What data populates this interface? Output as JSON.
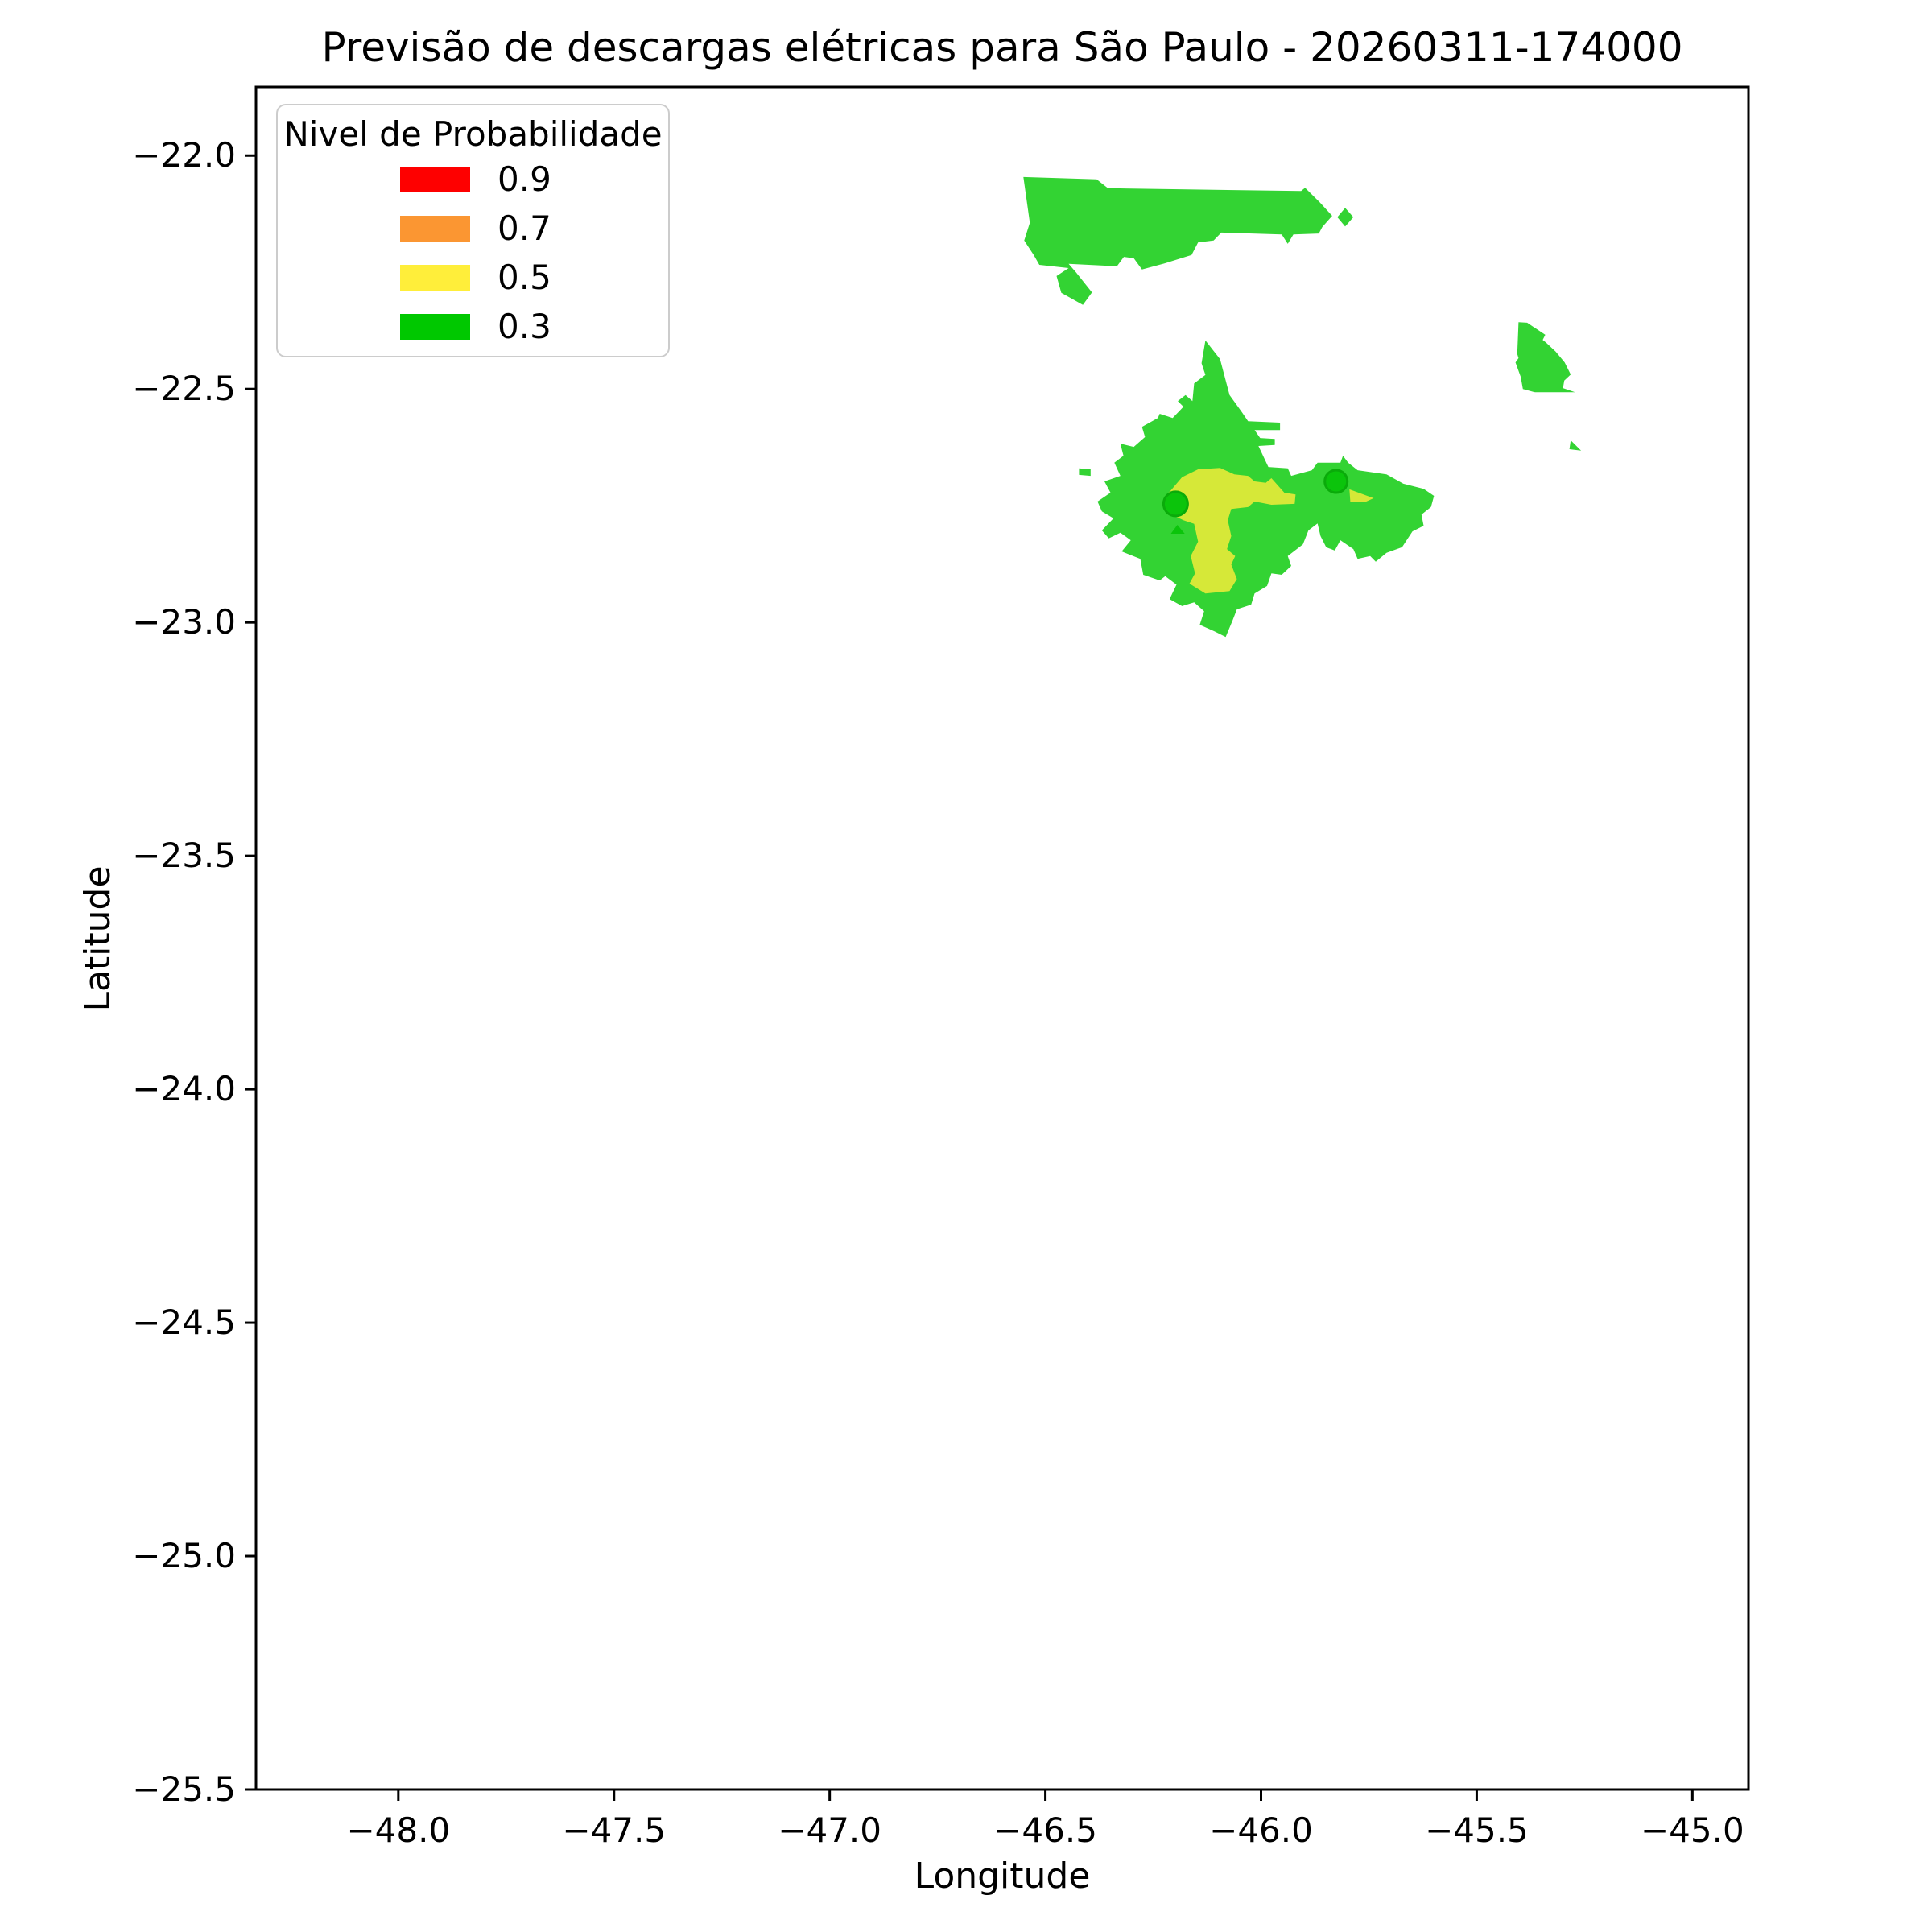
{
  "chart_data": {
    "type": "filled-contour-map",
    "title": "Previsão de descargas elétricas para São Paulo - 20260311-174000",
    "timestamp": "20260311-174000",
    "xlabel": "Longitude",
    "ylabel": "Latitude",
    "xlim": [
      -48.33,
      -44.87
    ],
    "ylim": [
      -25.5,
      -21.853
    ],
    "grid": false,
    "x_ticks": [
      -48.0,
      -47.5,
      -47.0,
      -46.5,
      -46.0,
      -45.5,
      -45.0
    ],
    "x_tick_labels": [
      "−48.0",
      "−47.5",
      "−47.0",
      "−46.5",
      "−46.0",
      "−45.5",
      "−45.0"
    ],
    "y_ticks": [
      -22.0,
      -22.5,
      -23.0,
      -23.5,
      -24.0,
      -24.5,
      -25.0,
      -25.5
    ],
    "y_tick_labels": [
      "−22.0",
      "−22.5",
      "−23.0",
      "−23.5",
      "−24.0",
      "−24.5",
      "−25.0",
      "−25.5"
    ],
    "levels": [
      0.3,
      0.5,
      0.7,
      0.9
    ],
    "level_colors": {
      "0.3": "#00c800",
      "0.5": "#ffee3a",
      "0.7": "#fb9632",
      "0.9": "#fe0000"
    },
    "fill_opacity": 0.8,
    "marker_color": "#0bc40b",
    "marker_edge_color": "#0aab0a",
    "legend": {
      "title": "Nivel de Probabilidade",
      "entries": [
        {
          "label": "0.9",
          "color": "#fe0000"
        },
        {
          "label": "0.7",
          "color": "#fb9632"
        },
        {
          "label": "0.5",
          "color": "#ffee3a"
        },
        {
          "label": "0.3",
          "color": "#00c800"
        }
      ]
    },
    "regions": [
      {
        "id": "band-03-north-blob",
        "level": "0.3",
        "points": [
          [
            -46.551,
            -22.046
          ],
          [
            -46.381,
            -22.051
          ],
          [
            -46.355,
            -22.07
          ],
          [
            -45.907,
            -22.076
          ],
          [
            -45.898,
            -22.069
          ],
          [
            -45.864,
            -22.1
          ],
          [
            -45.835,
            -22.129
          ],
          [
            -45.858,
            -22.153
          ],
          [
            -45.866,
            -22.167
          ],
          [
            -45.925,
            -22.169
          ],
          [
            -45.938,
            -22.189
          ],
          [
            -45.952,
            -22.169
          ],
          [
            -46.092,
            -22.165
          ],
          [
            -46.11,
            -22.182
          ],
          [
            -46.146,
            -22.186
          ],
          [
            -46.161,
            -22.213
          ],
          [
            -46.224,
            -22.231
          ],
          [
            -46.276,
            -22.244
          ],
          [
            -46.295,
            -22.22
          ],
          [
            -46.318,
            -22.217
          ],
          [
            -46.334,
            -22.237
          ],
          [
            -46.446,
            -22.232
          ],
          [
            -46.429,
            -22.25
          ],
          [
            -46.392,
            -22.293
          ],
          [
            -46.413,
            -22.32
          ],
          [
            -46.463,
            -22.294
          ],
          [
            -46.474,
            -22.258
          ],
          [
            -46.446,
            -22.241
          ],
          [
            -46.514,
            -22.234
          ],
          [
            -46.527,
            -22.213
          ],
          [
            -46.549,
            -22.182
          ],
          [
            -46.536,
            -22.144
          ]
        ]
      },
      {
        "id": "band-03-north-diamond",
        "level": "0.3",
        "points": [
          [
            -45.805,
            -22.112
          ],
          [
            -45.786,
            -22.132
          ],
          [
            -45.805,
            -22.152
          ],
          [
            -45.823,
            -22.132
          ]
        ]
      },
      {
        "id": "band-03-northeast-blob",
        "level": "0.3",
        "points": [
          [
            -45.403,
            -22.357
          ],
          [
            -45.383,
            -22.358
          ],
          [
            -45.341,
            -22.384
          ],
          [
            -45.347,
            -22.395
          ],
          [
            -45.34,
            -22.4
          ],
          [
            -45.317,
            -22.42
          ],
          [
            -45.296,
            -22.443
          ],
          [
            -45.282,
            -22.469
          ],
          [
            -45.297,
            -22.482
          ],
          [
            -45.3,
            -22.498
          ],
          [
            -45.272,
            -22.507
          ],
          [
            -45.365,
            -22.507
          ],
          [
            -45.393,
            -22.5
          ],
          [
            -45.398,
            -22.474
          ],
          [
            -45.41,
            -22.443
          ],
          [
            -45.403,
            -22.434
          ],
          [
            -45.406,
            -22.425
          ]
        ]
      },
      {
        "id": "band-03-northeast-sliver",
        "level": "0.3",
        "points": [
          [
            -45.282,
            -22.61
          ],
          [
            -45.258,
            -22.632
          ],
          [
            -45.285,
            -22.629
          ]
        ]
      },
      {
        "id": "band-03-central-blob",
        "level": "0.3",
        "points": [
          [
            -46.129,
            -22.396
          ],
          [
            -46.095,
            -22.436
          ],
          [
            -46.073,
            -22.513
          ],
          [
            -46.044,
            -22.55
          ],
          [
            -46.03,
            -22.569
          ],
          [
            -45.956,
            -22.572
          ],
          [
            -45.956,
            -22.588
          ],
          [
            -46.015,
            -22.588
          ],
          [
            -46.002,
            -22.605
          ],
          [
            -45.968,
            -22.607
          ],
          [
            -45.968,
            -22.62
          ],
          [
            -46.006,
            -22.622
          ],
          [
            -45.983,
            -22.667
          ],
          [
            -45.938,
            -22.67
          ],
          [
            -45.93,
            -22.686
          ],
          [
            -45.882,
            -22.674
          ],
          [
            -45.869,
            -22.658
          ],
          [
            -45.816,
            -22.658
          ],
          [
            -45.81,
            -22.643
          ],
          [
            -45.798,
            -22.658
          ],
          [
            -45.776,
            -22.674
          ],
          [
            -45.709,
            -22.683
          ],
          [
            -45.67,
            -22.703
          ],
          [
            -45.623,
            -22.714
          ],
          [
            -45.599,
            -22.729
          ],
          [
            -45.606,
            -22.753
          ],
          [
            -45.628,
            -22.769
          ],
          [
            -45.623,
            -22.793
          ],
          [
            -45.649,
            -22.805
          ],
          [
            -45.673,
            -22.839
          ],
          [
            -45.709,
            -22.851
          ],
          [
            -45.734,
            -22.87
          ],
          [
            -45.747,
            -22.858
          ],
          [
            -45.776,
            -22.864
          ],
          [
            -45.786,
            -22.843
          ],
          [
            -45.816,
            -22.824
          ],
          [
            -45.829,
            -22.846
          ],
          [
            -45.849,
            -22.839
          ],
          [
            -45.862,
            -22.815
          ],
          [
            -45.869,
            -22.788
          ],
          [
            -45.89,
            -22.803
          ],
          [
            -45.903,
            -22.833
          ],
          [
            -45.938,
            -22.858
          ],
          [
            -45.93,
            -22.879
          ],
          [
            -45.952,
            -22.898
          ],
          [
            -45.976,
            -22.895
          ],
          [
            -45.986,
            -22.922
          ],
          [
            -46.015,
            -22.938
          ],
          [
            -46.023,
            -22.962
          ],
          [
            -46.056,
            -22.972
          ],
          [
            -46.066,
            -22.996
          ],
          [
            -46.082,
            -23.031
          ],
          [
            -46.108,
            -23.019
          ],
          [
            -46.142,
            -23.005
          ],
          [
            -46.132,
            -22.976
          ],
          [
            -46.155,
            -22.957
          ],
          [
            -46.183,
            -22.965
          ],
          [
            -46.212,
            -22.95
          ],
          [
            -46.196,
            -22.919
          ],
          [
            -46.222,
            -22.901
          ],
          [
            -46.235,
            -22.91
          ],
          [
            -46.273,
            -22.898
          ],
          [
            -46.28,
            -22.864
          ],
          [
            -46.323,
            -22.848
          ],
          [
            -46.302,
            -22.824
          ],
          [
            -46.326,
            -22.808
          ],
          [
            -46.353,
            -22.82
          ],
          [
            -46.369,
            -22.803
          ],
          [
            -46.342,
            -22.777
          ],
          [
            -46.369,
            -22.762
          ],
          [
            -46.379,
            -22.741
          ],
          [
            -46.349,
            -22.722
          ],
          [
            -46.363,
            -22.698
          ],
          [
            -46.326,
            -22.686
          ],
          [
            -46.34,
            -22.658
          ],
          [
            -46.319,
            -22.643
          ],
          [
            -46.326,
            -22.617
          ],
          [
            -46.295,
            -22.624
          ],
          [
            -46.269,
            -22.603
          ],
          [
            -46.276,
            -22.581
          ],
          [
            -46.239,
            -22.562
          ],
          [
            -46.235,
            -22.553
          ],
          [
            -46.205,
            -22.562
          ],
          [
            -46.18,
            -22.538
          ],
          [
            -46.193,
            -22.526
          ],
          [
            -46.175,
            -22.513
          ],
          [
            -46.159,
            -22.526
          ],
          [
            -46.155,
            -22.488
          ],
          [
            -46.129,
            -22.47
          ],
          [
            -46.138,
            -22.445
          ]
        ]
      },
      {
        "id": "band-03-west-dash",
        "level": "0.3",
        "points": [
          [
            -46.422,
            -22.67
          ],
          [
            -46.395,
            -22.672
          ],
          [
            -46.395,
            -22.686
          ],
          [
            -46.422,
            -22.684
          ]
        ]
      },
      {
        "id": "band-05-central-core",
        "level": "0.5",
        "points": [
          [
            -46.183,
            -22.689
          ],
          [
            -46.146,
            -22.672
          ],
          [
            -46.095,
            -22.669
          ],
          [
            -46.062,
            -22.683
          ],
          [
            -46.03,
            -22.686
          ],
          [
            -46.015,
            -22.698
          ],
          [
            -45.989,
            -22.701
          ],
          [
            -45.976,
            -22.691
          ],
          [
            -45.946,
            -22.722
          ],
          [
            -45.92,
            -22.726
          ],
          [
            -45.922,
            -22.746
          ],
          [
            -45.976,
            -22.748
          ],
          [
            -46.015,
            -22.741
          ],
          [
            -46.03,
            -22.753
          ],
          [
            -46.069,
            -22.757
          ],
          [
            -46.077,
            -22.781
          ],
          [
            -46.069,
            -22.815
          ],
          [
            -46.079,
            -22.843
          ],
          [
            -46.06,
            -22.858
          ],
          [
            -46.069,
            -22.876
          ],
          [
            -46.056,
            -22.907
          ],
          [
            -46.073,
            -22.933
          ],
          [
            -46.129,
            -22.938
          ],
          [
            -46.166,
            -22.917
          ],
          [
            -46.153,
            -22.895
          ],
          [
            -46.163,
            -22.858
          ],
          [
            -46.146,
            -22.827
          ],
          [
            -46.155,
            -22.789
          ],
          [
            -46.18,
            -22.781
          ],
          [
            -46.217,
            -22.765
          ],
          [
            -46.206,
            -22.746
          ],
          [
            -46.222,
            -22.729
          ],
          [
            -46.209,
            -22.717
          ]
        ]
      },
      {
        "id": "band-05-east-sliver",
        "level": "0.5",
        "points": [
          [
            -45.795,
            -22.715
          ],
          [
            -45.739,
            -22.734
          ],
          [
            -45.756,
            -22.741
          ],
          [
            -45.793,
            -22.741
          ]
        ]
      }
    ],
    "markers": [
      {
        "shape": "circle",
        "lon": -46.198,
        "lat": -22.746,
        "radius_px": 15
      },
      {
        "shape": "circle",
        "lon": -45.826,
        "lat": -22.698,
        "radius_px": 14
      },
      {
        "shape": "triangle",
        "points": [
          [
            -46.209,
            -22.81
          ],
          [
            -46.177,
            -22.81
          ],
          [
            -46.194,
            -22.791
          ]
        ]
      }
    ]
  }
}
